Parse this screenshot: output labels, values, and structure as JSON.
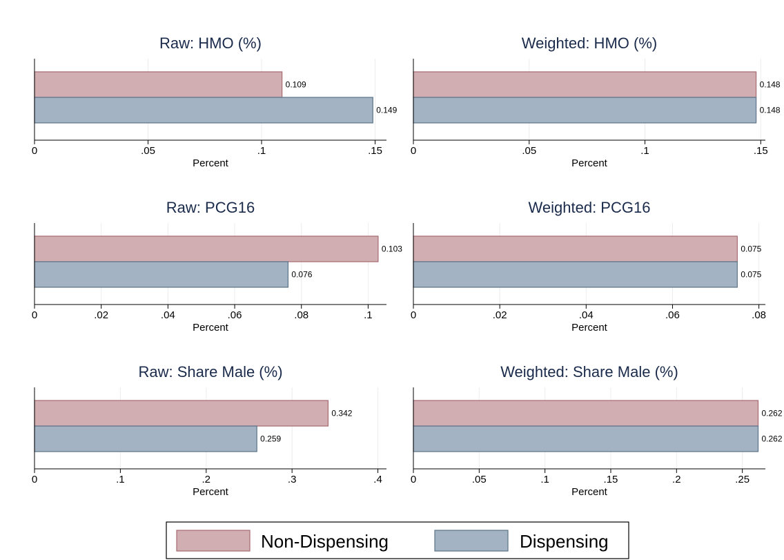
{
  "colors": {
    "non_dispensing_fill": "#d0aeb2",
    "non_dispensing_stroke": "#a66a70",
    "dispensing_fill": "#a3b3c4",
    "dispensing_stroke": "#5b7389",
    "title": "#1a2a4a",
    "grid": "#ececec"
  },
  "legend": {
    "items": [
      {
        "label": "Non-Dispensing",
        "color_key": "non_dispensing"
      },
      {
        "label": "Dispensing",
        "color_key": "dispensing"
      }
    ]
  },
  "chart_data": [
    {
      "type": "bar",
      "orientation": "horizontal",
      "title": "Raw: HMO (%)",
      "xlabel": "Percent",
      "xlim": [
        0,
        0.155
      ],
      "ticks": [
        0,
        0.05,
        0.1,
        0.15
      ],
      "tick_labels": [
        "0",
        ".05",
        ".1",
        ".15"
      ],
      "series": [
        {
          "name": "Non-Dispensing",
          "value": 0.109,
          "label": "0.109"
        },
        {
          "name": "Dispensing",
          "value": 0.149,
          "label": "0.149"
        }
      ]
    },
    {
      "type": "bar",
      "orientation": "horizontal",
      "title": "Weighted: HMO (%)",
      "xlabel": "Percent",
      "xlim": [
        0,
        0.152
      ],
      "ticks": [
        0,
        0.05,
        0.1,
        0.15
      ],
      "tick_labels": [
        "0",
        ".05",
        ".1",
        ".15"
      ],
      "series": [
        {
          "name": "Non-Dispensing",
          "value": 0.148,
          "label": "0.148"
        },
        {
          "name": "Dispensing",
          "value": 0.148,
          "label": "0.148"
        }
      ]
    },
    {
      "type": "bar",
      "orientation": "horizontal",
      "title": "Raw: PCG16",
      "xlabel": "Percent",
      "xlim": [
        0,
        0.1055
      ],
      "ticks": [
        0,
        0.02,
        0.04,
        0.06,
        0.08,
        0.1
      ],
      "tick_labels": [
        "0",
        ".02",
        ".04",
        ".06",
        ".08",
        ".1"
      ],
      "series": [
        {
          "name": "Non-Dispensing",
          "value": 0.103,
          "label": "0.103"
        },
        {
          "name": "Dispensing",
          "value": 0.076,
          "label": "0.076"
        }
      ]
    },
    {
      "type": "bar",
      "orientation": "horizontal",
      "title": "Weighted: PCG16",
      "xlabel": "Percent",
      "xlim": [
        0,
        0.0815
      ],
      "ticks": [
        0,
        0.02,
        0.04,
        0.06,
        0.08
      ],
      "tick_labels": [
        "0",
        ".02",
        ".04",
        ".06",
        ".08"
      ],
      "series": [
        {
          "name": "Non-Dispensing",
          "value": 0.075,
          "label": "0.075"
        },
        {
          "name": "Dispensing",
          "value": 0.075,
          "label": "0.075"
        }
      ]
    },
    {
      "type": "bar",
      "orientation": "horizontal",
      "title": "Raw: Share Male (%)",
      "xlabel": "Percent",
      "xlim": [
        0,
        0.41
      ],
      "ticks": [
        0,
        0.1,
        0.2,
        0.3,
        0.4
      ],
      "tick_labels": [
        "0",
        ".1",
        ".2",
        ".3",
        ".4"
      ],
      "series": [
        {
          "name": "Non-Dispensing",
          "value": 0.342,
          "label": "0.342"
        },
        {
          "name": "Dispensing",
          "value": 0.259,
          "label": "0.259"
        }
      ]
    },
    {
      "type": "bar",
      "orientation": "horizontal",
      "title": "Weighted: Share Male (%)",
      "xlabel": "Percent",
      "xlim": [
        0,
        0.2675
      ],
      "ticks": [
        0,
        0.05,
        0.1,
        0.15,
        0.2,
        0.25
      ],
      "tick_labels": [
        "0",
        ".05",
        ".1",
        ".15",
        ".2",
        ".25"
      ],
      "series": [
        {
          "name": "Non-Dispensing",
          "value": 0.262,
          "label": "0.262"
        },
        {
          "name": "Dispensing",
          "value": 0.262,
          "label": "0.262"
        }
      ]
    }
  ]
}
